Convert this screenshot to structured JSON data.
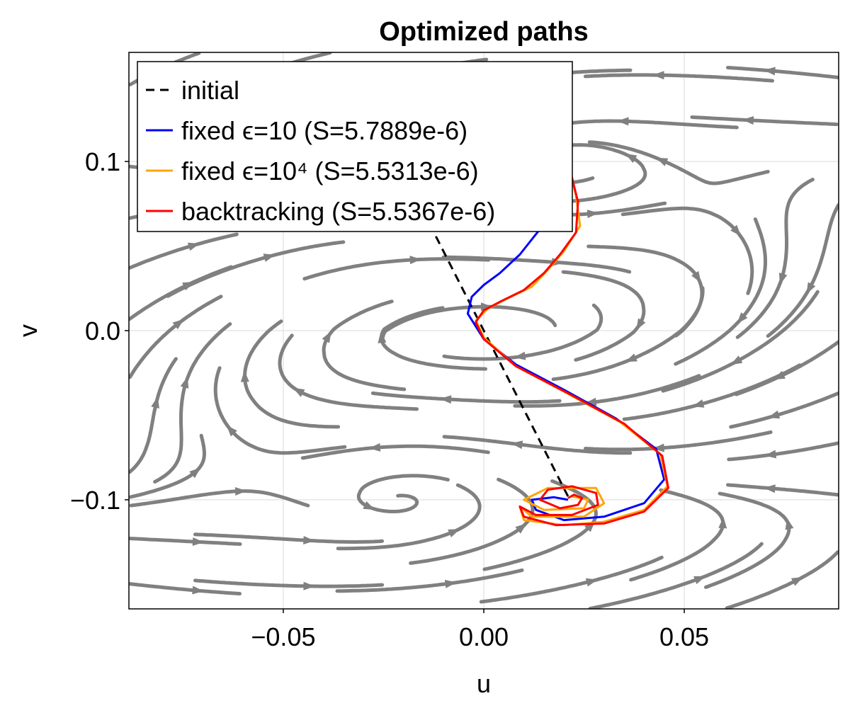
{
  "chart_data": {
    "type": "line",
    "title": "Optimized paths",
    "xlabel": "u",
    "ylabel": "v",
    "xlim": [
      -0.0885,
      0.0885
    ],
    "ylim": [
      -0.1645,
      0.1645
    ],
    "x_ticks": [
      {
        "value": -0.05,
        "label": "−0.05"
      },
      {
        "value": 0.0,
        "label": "0.00"
      },
      {
        "value": 0.05,
        "label": "0.05"
      }
    ],
    "y_ticks": [
      {
        "value": 0.1,
        "label": "0.1"
      },
      {
        "value": 0.0,
        "label": "0.0"
      },
      {
        "value": -0.1,
        "label": "−0.1"
      }
    ],
    "grid": true,
    "legend_position": "top-left",
    "background_field": {
      "description": "streamplot of vector field",
      "color": "#808080",
      "saddle": [
        0.0,
        0.0
      ],
      "attractors": [
        [
          0.021,
          -0.101
        ],
        [
          0.021,
          0.101
        ]
      ]
    },
    "series": [
      {
        "name": "initial",
        "color": "#000000",
        "dash": true,
        "points": [
          [
            0.021,
            -0.098
          ],
          [
            0.0,
            0.0
          ],
          [
            -0.021,
            0.098
          ]
        ]
      },
      {
        "name": "fixed ϵ=10 (S=5.7889e-6)",
        "color": "#0000ff",
        "dash": false,
        "points": [
          [
            0.021,
            -0.1
          ],
          [
            0.0175,
            -0.0985
          ],
          [
            0.012,
            -0.1
          ],
          [
            0.013,
            -0.106
          ],
          [
            0.02,
            -0.112
          ],
          [
            0.03,
            -0.11
          ],
          [
            0.04,
            -0.102
          ],
          [
            0.045,
            -0.088
          ],
          [
            0.043,
            -0.07
          ],
          [
            0.033,
            -0.052
          ],
          [
            0.02,
            -0.035
          ],
          [
            0.008,
            -0.02
          ],
          [
            0.0,
            -0.005
          ],
          [
            -0.004,
            0.01
          ],
          [
            -0.003,
            0.02
          ],
          [
            0.0,
            0.027
          ],
          [
            0.004,
            0.034
          ],
          [
            0.009,
            0.045
          ],
          [
            0.012,
            0.054
          ],
          [
            0.014,
            0.06
          ]
        ]
      },
      {
        "name": "fixed ϵ=10⁴ (S=5.5313e-6)",
        "color": "#ffa500",
        "dash": false,
        "points": [
          [
            0.022,
            -0.098
          ],
          [
            0.026,
            -0.1
          ],
          [
            0.025,
            -0.105
          ],
          [
            0.015,
            -0.106
          ],
          [
            0.01,
            -0.1
          ],
          [
            0.016,
            -0.093
          ],
          [
            0.028,
            -0.093
          ],
          [
            0.03,
            -0.102
          ],
          [
            0.025,
            -0.11
          ],
          [
            0.012,
            -0.11
          ],
          [
            0.009,
            -0.104
          ],
          [
            0.01,
            -0.112
          ],
          [
            0.02,
            -0.115
          ],
          [
            0.03,
            -0.113
          ],
          [
            0.04,
            -0.106
          ],
          [
            0.0458,
            -0.092
          ],
          [
            0.044,
            -0.073
          ],
          [
            0.034,
            -0.054
          ],
          [
            0.02,
            -0.036
          ],
          [
            0.008,
            -0.021
          ],
          [
            0.0,
            -0.004
          ],
          [
            -0.002,
            0.006
          ],
          [
            0.001,
            0.013
          ],
          [
            0.005,
            0.018
          ],
          [
            0.012,
            0.026
          ],
          [
            0.016,
            0.036
          ],
          [
            0.02,
            0.047
          ],
          [
            0.024,
            0.062
          ],
          [
            0.023,
            0.08
          ],
          [
            0.021,
            0.098
          ]
        ]
      },
      {
        "name": "backtracking (S=5.5367e-6)",
        "color": "#ff0000",
        "dash": false,
        "points": [
          [
            0.021,
            -0.099
          ],
          [
            0.0225,
            -0.097
          ],
          [
            0.0245,
            -0.099
          ],
          [
            0.0235,
            -0.103
          ],
          [
            0.019,
            -0.105
          ],
          [
            0.014,
            -0.1
          ],
          [
            0.016,
            -0.094
          ],
          [
            0.022,
            -0.092
          ],
          [
            0.028,
            -0.096
          ],
          [
            0.0285,
            -0.103
          ],
          [
            0.022,
            -0.109
          ],
          [
            0.013,
            -0.109
          ],
          [
            0.009,
            -0.104
          ],
          [
            0.01,
            -0.11
          ],
          [
            0.018,
            -0.115
          ],
          [
            0.03,
            -0.114
          ],
          [
            0.04,
            -0.107
          ],
          [
            0.046,
            -0.093
          ],
          [
            0.0445,
            -0.074
          ],
          [
            0.035,
            -0.055
          ],
          [
            0.021,
            -0.037
          ],
          [
            0.008,
            -0.021
          ],
          [
            0.0,
            -0.005
          ],
          [
            -0.002,
            0.005
          ],
          [
            0.0,
            0.012
          ],
          [
            0.004,
            0.017
          ],
          [
            0.01,
            0.024
          ],
          [
            0.015,
            0.034
          ],
          [
            0.019,
            0.045
          ],
          [
            0.023,
            0.058
          ],
          [
            0.0235,
            0.076
          ],
          [
            0.021,
            0.1
          ]
        ]
      }
    ]
  }
}
